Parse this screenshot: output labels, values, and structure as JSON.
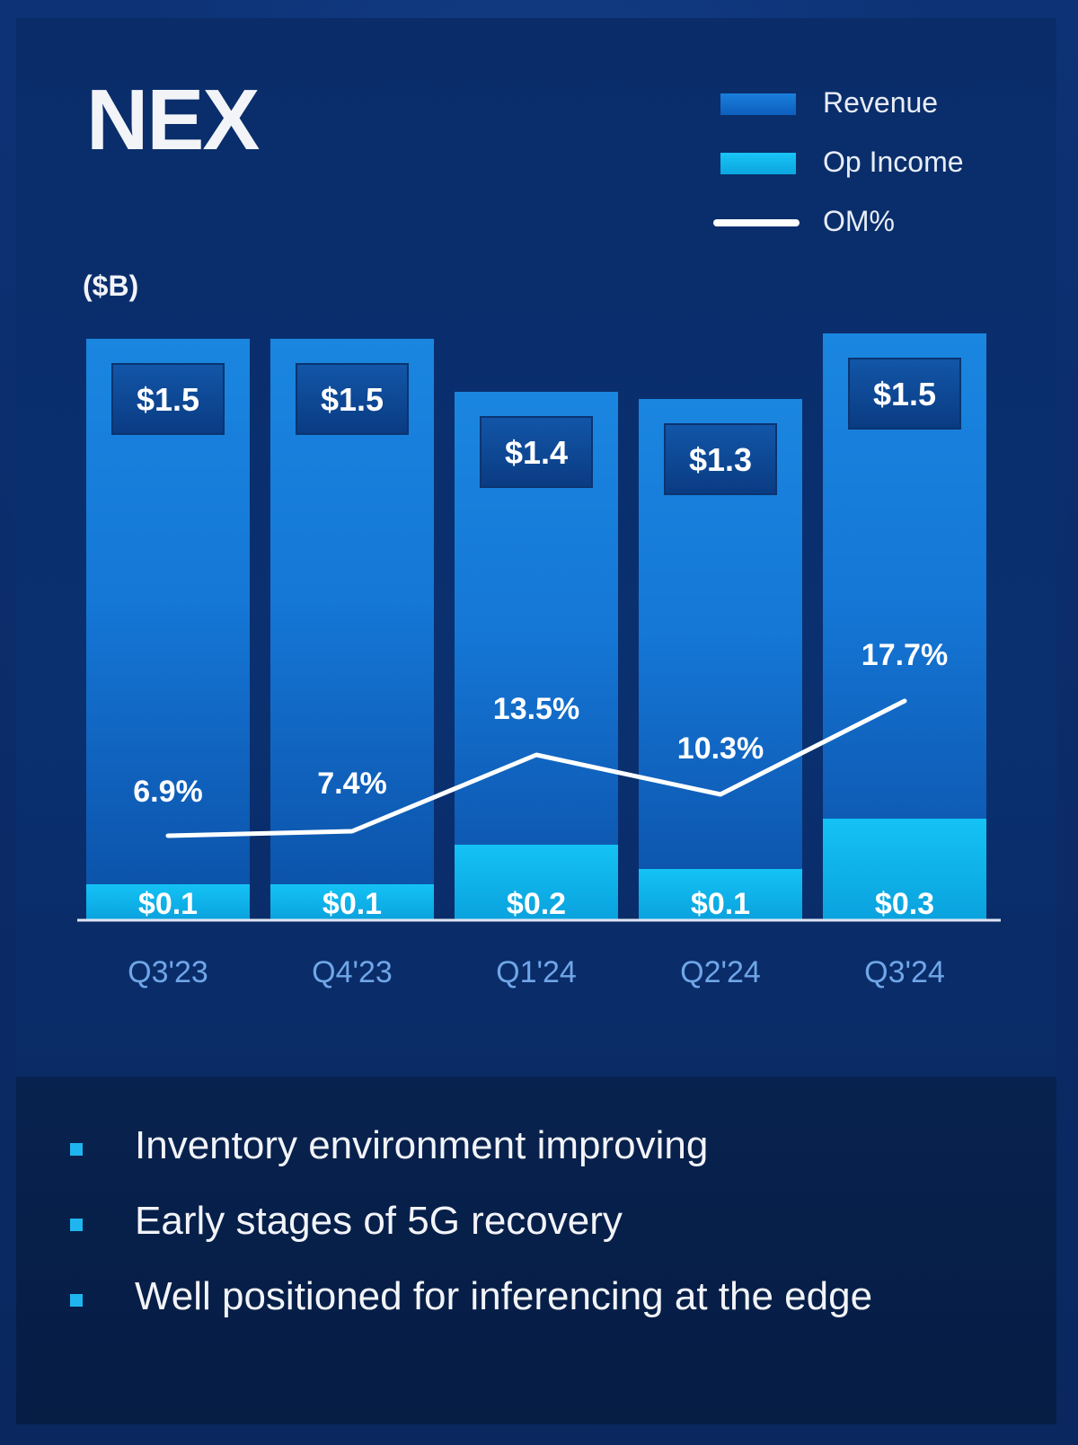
{
  "title": "NEX",
  "unit_label": "($B)",
  "legend": [
    {
      "label": "Revenue",
      "kind": "bar",
      "color": "#0f6fd0"
    },
    {
      "label": "Op Income",
      "kind": "bar",
      "color": "#12b8ee"
    },
    {
      "label": "OM%",
      "kind": "line",
      "color": "#ffffff"
    }
  ],
  "chart_data": {
    "type": "bar",
    "categories": [
      "Q3'23",
      "Q4'23",
      "Q1'24",
      "Q2'24",
      "Q3'24"
    ],
    "series": [
      {
        "name": "Revenue",
        "values": [
          1.5,
          1.5,
          1.4,
          1.3,
          1.5
        ],
        "labels": [
          "$1.5",
          "$1.5",
          "$1.4",
          "$1.3",
          "$1.5"
        ]
      },
      {
        "name": "Op Income",
        "values": [
          0.1,
          0.1,
          0.2,
          0.1,
          0.3
        ],
        "labels": [
          "$0.1",
          "$0.1",
          "$0.2",
          "$0.1",
          "$0.3"
        ]
      },
      {
        "name": "OM%",
        "type": "line",
        "values": [
          6.9,
          7.4,
          13.5,
          10.3,
          17.7
        ],
        "labels": [
          "6.9%",
          "7.4%",
          "13.5%",
          "10.3%",
          "17.7%"
        ]
      }
    ],
    "ylim": [
      0,
      1.5
    ],
    "grid": false,
    "legend_position": "top-right",
    "colors": {
      "revenue": "#0f6fd0",
      "op_income": "#12b8ee",
      "om_line": "#ffffff",
      "axis": "#dfe6f2",
      "tick": "#6fa6e8"
    }
  },
  "bullets": [
    "Inventory environment improving",
    "Early stages of 5G recovery",
    "Well positioned for inferencing at the edge"
  ]
}
